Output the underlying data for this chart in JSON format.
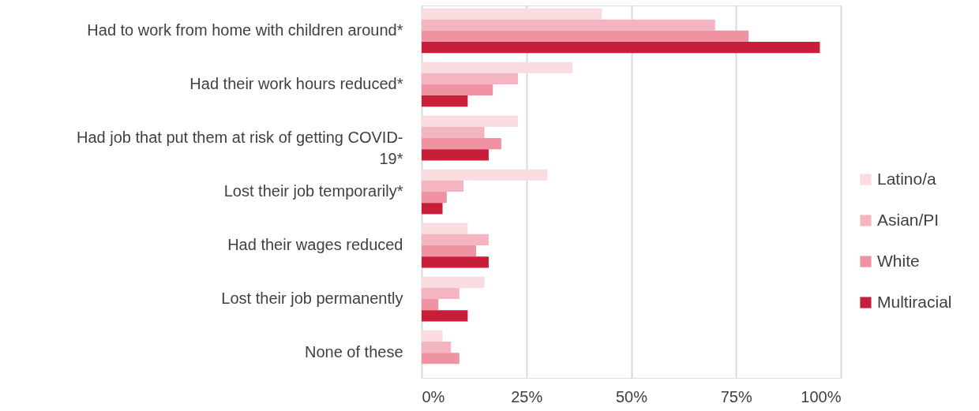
{
  "chart_data": {
    "type": "bar",
    "orientation": "horizontal",
    "categories": [
      "Had to work from home with children around*",
      "Had their work hours reduced*",
      "Had job that put them at risk of getting COVID-19*",
      "Lost their job temporarily*",
      "Had their wages reduced",
      "Lost their job permanently",
      "None of these"
    ],
    "series": [
      {
        "name": "Latino/a",
        "color": "#fadbe0",
        "values": [
          43,
          36,
          23,
          30,
          11,
          15,
          5
        ]
      },
      {
        "name": "Asian/PI",
        "color": "#f4b5c1",
        "values": [
          70,
          23,
          15,
          10,
          16,
          9,
          7
        ]
      },
      {
        "name": "White",
        "color": "#ef93a2",
        "values": [
          78,
          17,
          19,
          6,
          13,
          4,
          9
        ]
      },
      {
        "name": "Multiracial",
        "color": "#c81e3a",
        "values": [
          95,
          11,
          16,
          5,
          16,
          11,
          null
        ]
      }
    ],
    "xlim": [
      0,
      100
    ],
    "xticks": [
      {
        "value": 0,
        "label": "0%"
      },
      {
        "value": 25,
        "label": "25%"
      },
      {
        "value": 50,
        "label": "50%"
      },
      {
        "value": 75,
        "label": "75%"
      },
      {
        "value": 100,
        "label": "100%"
      }
    ],
    "grid": "x",
    "legend": "right"
  }
}
